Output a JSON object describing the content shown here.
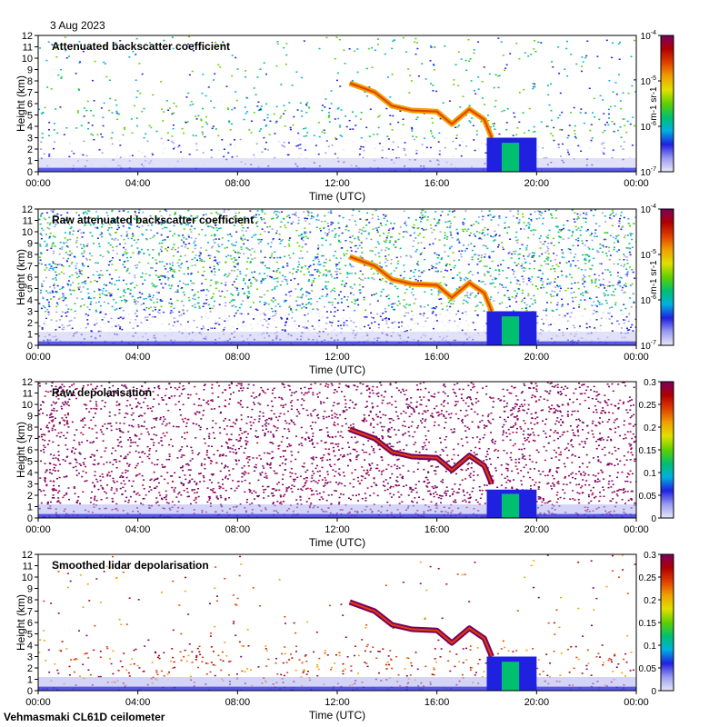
{
  "date_label": "3 Aug 2023",
  "footer": "Vehmasmaki CL61D ceilometer",
  "colors": {
    "bg_noise": "#d9d9d9",
    "scale": [
      "#e8e8f8",
      "#9a9af0",
      "#2020e0",
      "#00b0e0",
      "#00c070",
      "#60d000",
      "#e0e000",
      "#f0a000",
      "#e04000",
      "#b00000",
      "#7a0060"
    ]
  },
  "chart_data": [
    {
      "type": "heatmap",
      "title": "Attenuated backscatter coefficient",
      "xlabel": "Time (UTC)",
      "ylabel": "Height (km)",
      "x_ticks": [
        "00:00",
        "04:00",
        "08:00",
        "12:00",
        "16:00",
        "20:00",
        "00:00"
      ],
      "y_ticks": [
        "0",
        "1",
        "2",
        "3",
        "4",
        "5",
        "6",
        "7",
        "8",
        "9",
        "10",
        "11",
        "12"
      ],
      "ylim": [
        0,
        12
      ],
      "xlim_hours": [
        0,
        24
      ],
      "colorbar": {
        "scale": "log",
        "ticks": [
          "10-7",
          "10-6",
          "10-5",
          "10-4"
        ],
        "unit": "m-1 sr-1"
      },
      "features": {
        "cloud_layer": [
          [
            12.5,
            7.8
          ],
          [
            13.5,
            7.0
          ],
          [
            14.2,
            5.8
          ],
          [
            15.0,
            5.4
          ],
          [
            16.0,
            5.3
          ],
          [
            16.6,
            4.2
          ],
          [
            17.3,
            5.5
          ],
          [
            17.9,
            4.6
          ],
          [
            18.2,
            3.0
          ]
        ],
        "low_cloud": [
          18.0,
          20.0,
          0,
          3.0
        ]
      }
    },
    {
      "type": "heatmap",
      "title": "Raw attenuated backscatter coefficient",
      "xlabel": "Time (UTC)",
      "ylabel": "Height (km)",
      "x_ticks": [
        "00:00",
        "04:00",
        "08:00",
        "12:00",
        "16:00",
        "20:00",
        "00:00"
      ],
      "y_ticks": [
        "0",
        "1",
        "2",
        "3",
        "4",
        "5",
        "6",
        "7",
        "8",
        "9",
        "10",
        "11",
        "12"
      ],
      "ylim": [
        0,
        12
      ],
      "xlim_hours": [
        0,
        24
      ],
      "colorbar": {
        "scale": "log",
        "ticks": [
          "10-7",
          "10-6",
          "10-5",
          "10-4"
        ],
        "unit": "m-1 sr-1"
      },
      "features": {
        "cloud_layer": [
          [
            12.5,
            7.8
          ],
          [
            13.5,
            7.0
          ],
          [
            14.2,
            5.8
          ],
          [
            15.0,
            5.4
          ],
          [
            16.0,
            5.3
          ],
          [
            16.6,
            4.2
          ],
          [
            17.3,
            5.5
          ],
          [
            17.9,
            4.6
          ],
          [
            18.2,
            3.0
          ]
        ],
        "low_cloud": [
          18.0,
          20.0,
          0,
          3.0
        ]
      }
    },
    {
      "type": "heatmap",
      "title": "Raw depolarisation",
      "xlabel": "Time (UTC)",
      "ylabel": "Height (km)",
      "x_ticks": [
        "00:00",
        "04:00",
        "08:00",
        "12:00",
        "16:00",
        "20:00",
        "00:00"
      ],
      "y_ticks": [
        "0",
        "1",
        "2",
        "3",
        "4",
        "5",
        "6",
        "7",
        "8",
        "9",
        "10",
        "11",
        "12"
      ],
      "ylim": [
        0,
        12
      ],
      "xlim_hours": [
        0,
        24
      ],
      "colorbar": {
        "scale": "linear",
        "ticks": [
          "0",
          "0.05",
          "0.1",
          "0.15",
          "0.2",
          "0.25",
          "0.3"
        ],
        "unit": ""
      },
      "features": {
        "cloud_layer": [
          [
            12.5,
            7.8
          ],
          [
            13.5,
            7.0
          ],
          [
            14.2,
            5.8
          ],
          [
            15.0,
            5.4
          ],
          [
            16.0,
            5.3
          ],
          [
            16.6,
            4.2
          ],
          [
            17.3,
            5.5
          ],
          [
            17.9,
            4.6
          ],
          [
            18.2,
            3.0
          ]
        ],
        "low_cloud": [
          18.0,
          20.0,
          0,
          2.5
        ]
      }
    },
    {
      "type": "heatmap",
      "title": "Smoothed lidar depolarisation",
      "xlabel": "Time (UTC)",
      "ylabel": "Height (km)",
      "x_ticks": [
        "00:00",
        "04:00",
        "08:00",
        "12:00",
        "16:00",
        "20:00",
        "00:00"
      ],
      "y_ticks": [
        "0",
        "1",
        "2",
        "3",
        "4",
        "5",
        "6",
        "7",
        "8",
        "9",
        "10",
        "11",
        "12"
      ],
      "ylim": [
        0,
        12
      ],
      "xlim_hours": [
        0,
        24
      ],
      "colorbar": {
        "scale": "linear",
        "ticks": [
          "0",
          "0.05",
          "0.1",
          "0.15",
          "0.2",
          "0.25",
          "0.3"
        ],
        "unit": ""
      },
      "features": {
        "cloud_layer": [
          [
            12.5,
            7.8
          ],
          [
            13.5,
            7.0
          ],
          [
            14.2,
            5.8
          ],
          [
            15.0,
            5.4
          ],
          [
            16.0,
            5.3
          ],
          [
            16.6,
            4.2
          ],
          [
            17.3,
            5.5
          ],
          [
            17.9,
            4.6
          ],
          [
            18.2,
            3.0
          ]
        ],
        "low_cloud": [
          18.0,
          20.0,
          0,
          3.0
        ]
      }
    }
  ]
}
